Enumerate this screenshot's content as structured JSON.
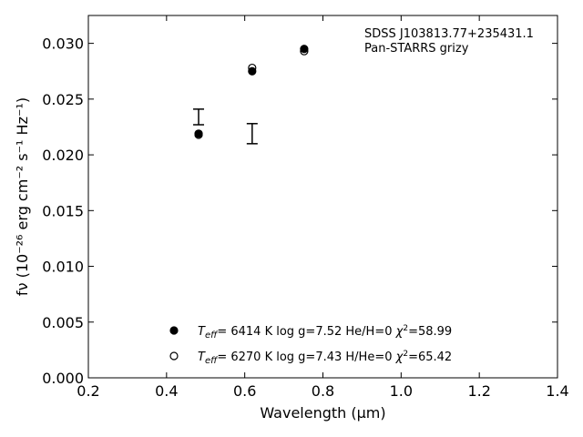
{
  "chart_data": {
    "type": "scatter",
    "xlabel": "Wavelength (μm)",
    "ylabel": "fν (10⁻²⁶ erg cm⁻² s⁻¹ Hz⁻¹)",
    "xlim": [
      0.2,
      1.4
    ],
    "ylim": [
      0.0,
      0.0325
    ],
    "xticks": [
      "0.2",
      "0.4",
      "0.6",
      "0.8",
      "1.0",
      "1.2",
      "1.4"
    ],
    "yticks": [
      "0.000",
      "0.005",
      "0.010",
      "0.015",
      "0.020",
      "0.025",
      "0.030"
    ],
    "annotations": [
      "SDSS J103813.77+235431.1",
      "Pan-STARRS grizy"
    ],
    "observed": [
      {
        "x": 0.482,
        "y": 0.0234,
        "yerr_low": 0.0227,
        "yerr_high": 0.0241
      },
      {
        "x": 0.619,
        "y": 0.0219,
        "yerr_low": 0.021,
        "yerr_high": 0.0228
      }
    ],
    "series": [
      {
        "marker": "filled-circle",
        "x": [
          0.482,
          0.619,
          0.752
        ],
        "y": [
          0.0219,
          0.0275,
          0.0295
        ],
        "label_parts": {
          "teff_prefix": "T",
          "teff_sub": "eff",
          "teff_value": "=  6414 K",
          "logg": "log g=7.52",
          "comp": "He/H=0",
          "chi_sym": "χ",
          "chi_sup": "2",
          "chi_value": "=58.99"
        }
      },
      {
        "marker": "open-circle",
        "x": [
          0.482,
          0.619,
          0.752
        ],
        "y": [
          0.0218,
          0.0278,
          0.0293
        ],
        "label_parts": {
          "teff_prefix": "T",
          "teff_sub": "eff",
          "teff_value": "=  6270 K",
          "logg": "log g=7.43",
          "comp": "H/He=0",
          "chi_sym": "χ",
          "chi_sup": "2",
          "chi_value": "=65.42"
        }
      }
    ],
    "legend_position": "bottom-center",
    "grid": false
  }
}
